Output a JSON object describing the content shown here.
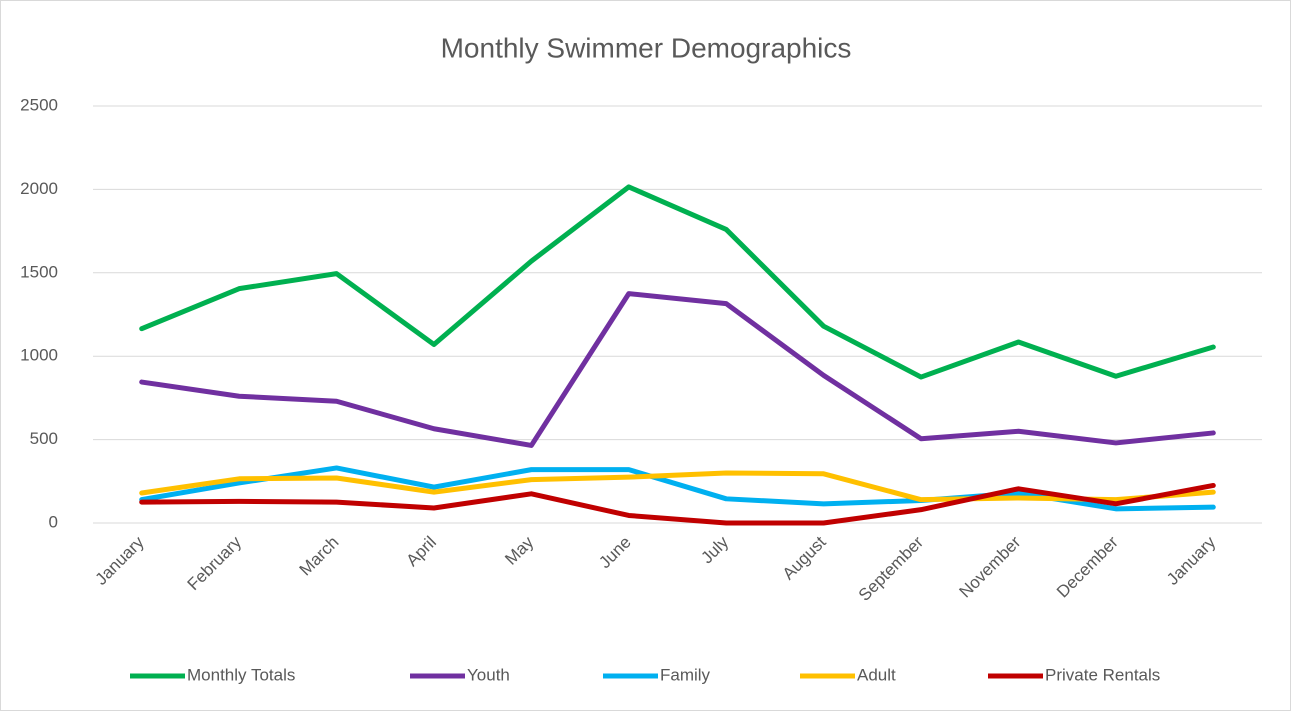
{
  "chart_data": {
    "type": "line",
    "title": "Monthly Swimmer Demographics",
    "categories": [
      "January",
      "February",
      "March",
      "April",
      "May",
      "June",
      "July",
      "August",
      "September",
      "November",
      "December",
      "January"
    ],
    "series": [
      {
        "name": "Monthly Totals",
        "color": "#00b050",
        "values": [
          1165,
          1405,
          1495,
          1070,
          1570,
          2015,
          1760,
          1180,
          875,
          1085,
          880,
          1055
        ]
      },
      {
        "name": "Youth",
        "color": "#7030a0",
        "values": [
          845,
          760,
          730,
          565,
          465,
          1375,
          1315,
          885,
          505,
          550,
          480,
          540
        ]
      },
      {
        "name": "Family",
        "color": "#00b0f0",
        "values": [
          140,
          240,
          330,
          215,
          320,
          320,
          145,
          115,
          135,
          180,
          85,
          95
        ]
      },
      {
        "name": "Adult",
        "color": "#ffc000",
        "values": [
          180,
          265,
          270,
          185,
          260,
          275,
          300,
          295,
          140,
          150,
          140,
          185
        ]
      },
      {
        "name": "Private Rentals",
        "color": "#c00000",
        "values": [
          125,
          130,
          125,
          90,
          175,
          45,
          0,
          0,
          80,
          205,
          115,
          225
        ]
      }
    ],
    "ylim": [
      0,
      2500
    ],
    "yticks": [
      0,
      500,
      1000,
      1500,
      2000,
      2500
    ],
    "grid": true,
    "legend": "bottom"
  }
}
